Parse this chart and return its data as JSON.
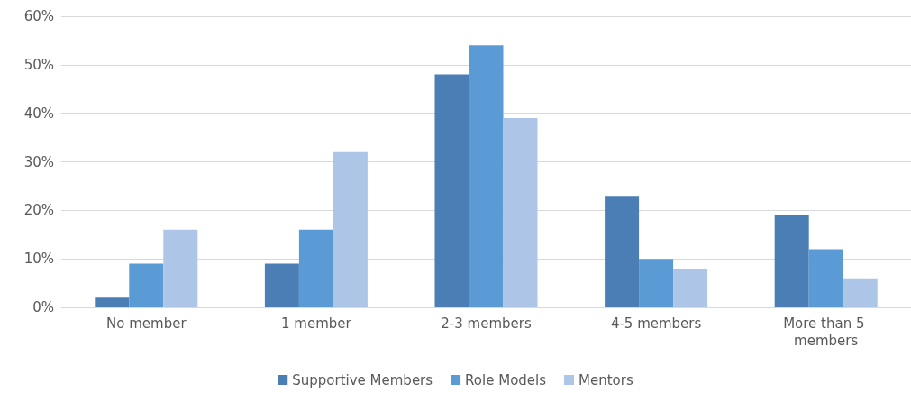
{
  "chart_data": {
    "type": "bar",
    "categories": [
      "No member",
      "1 member",
      "2-3 members",
      "4-5 members",
      "More than 5 members"
    ],
    "series": [
      {
        "name": "Supportive Members",
        "color": "#4a7eb4",
        "values": [
          2,
          9,
          48,
          23,
          19
        ]
      },
      {
        "name": "Role Models",
        "color": "#5b9bd5",
        "values": [
          9,
          16,
          54,
          10,
          12
        ]
      },
      {
        "name": "Mentors",
        "color": "#adc5e6",
        "values": [
          16,
          32,
          39,
          8,
          6
        ]
      }
    ],
    "ylim": [
      0,
      60
    ],
    "yticks": [
      {
        "value": 0,
        "label": "0%"
      },
      {
        "value": 10,
        "label": "10%"
      },
      {
        "value": 20,
        "label": "20%"
      },
      {
        "value": 30,
        "label": "30%"
      },
      {
        "value": 40,
        "label": "40%"
      },
      {
        "value": 50,
        "label": "50%"
      },
      {
        "value": 60,
        "label": "60%"
      }
    ],
    "grid": "y",
    "legend": "bottom"
  }
}
